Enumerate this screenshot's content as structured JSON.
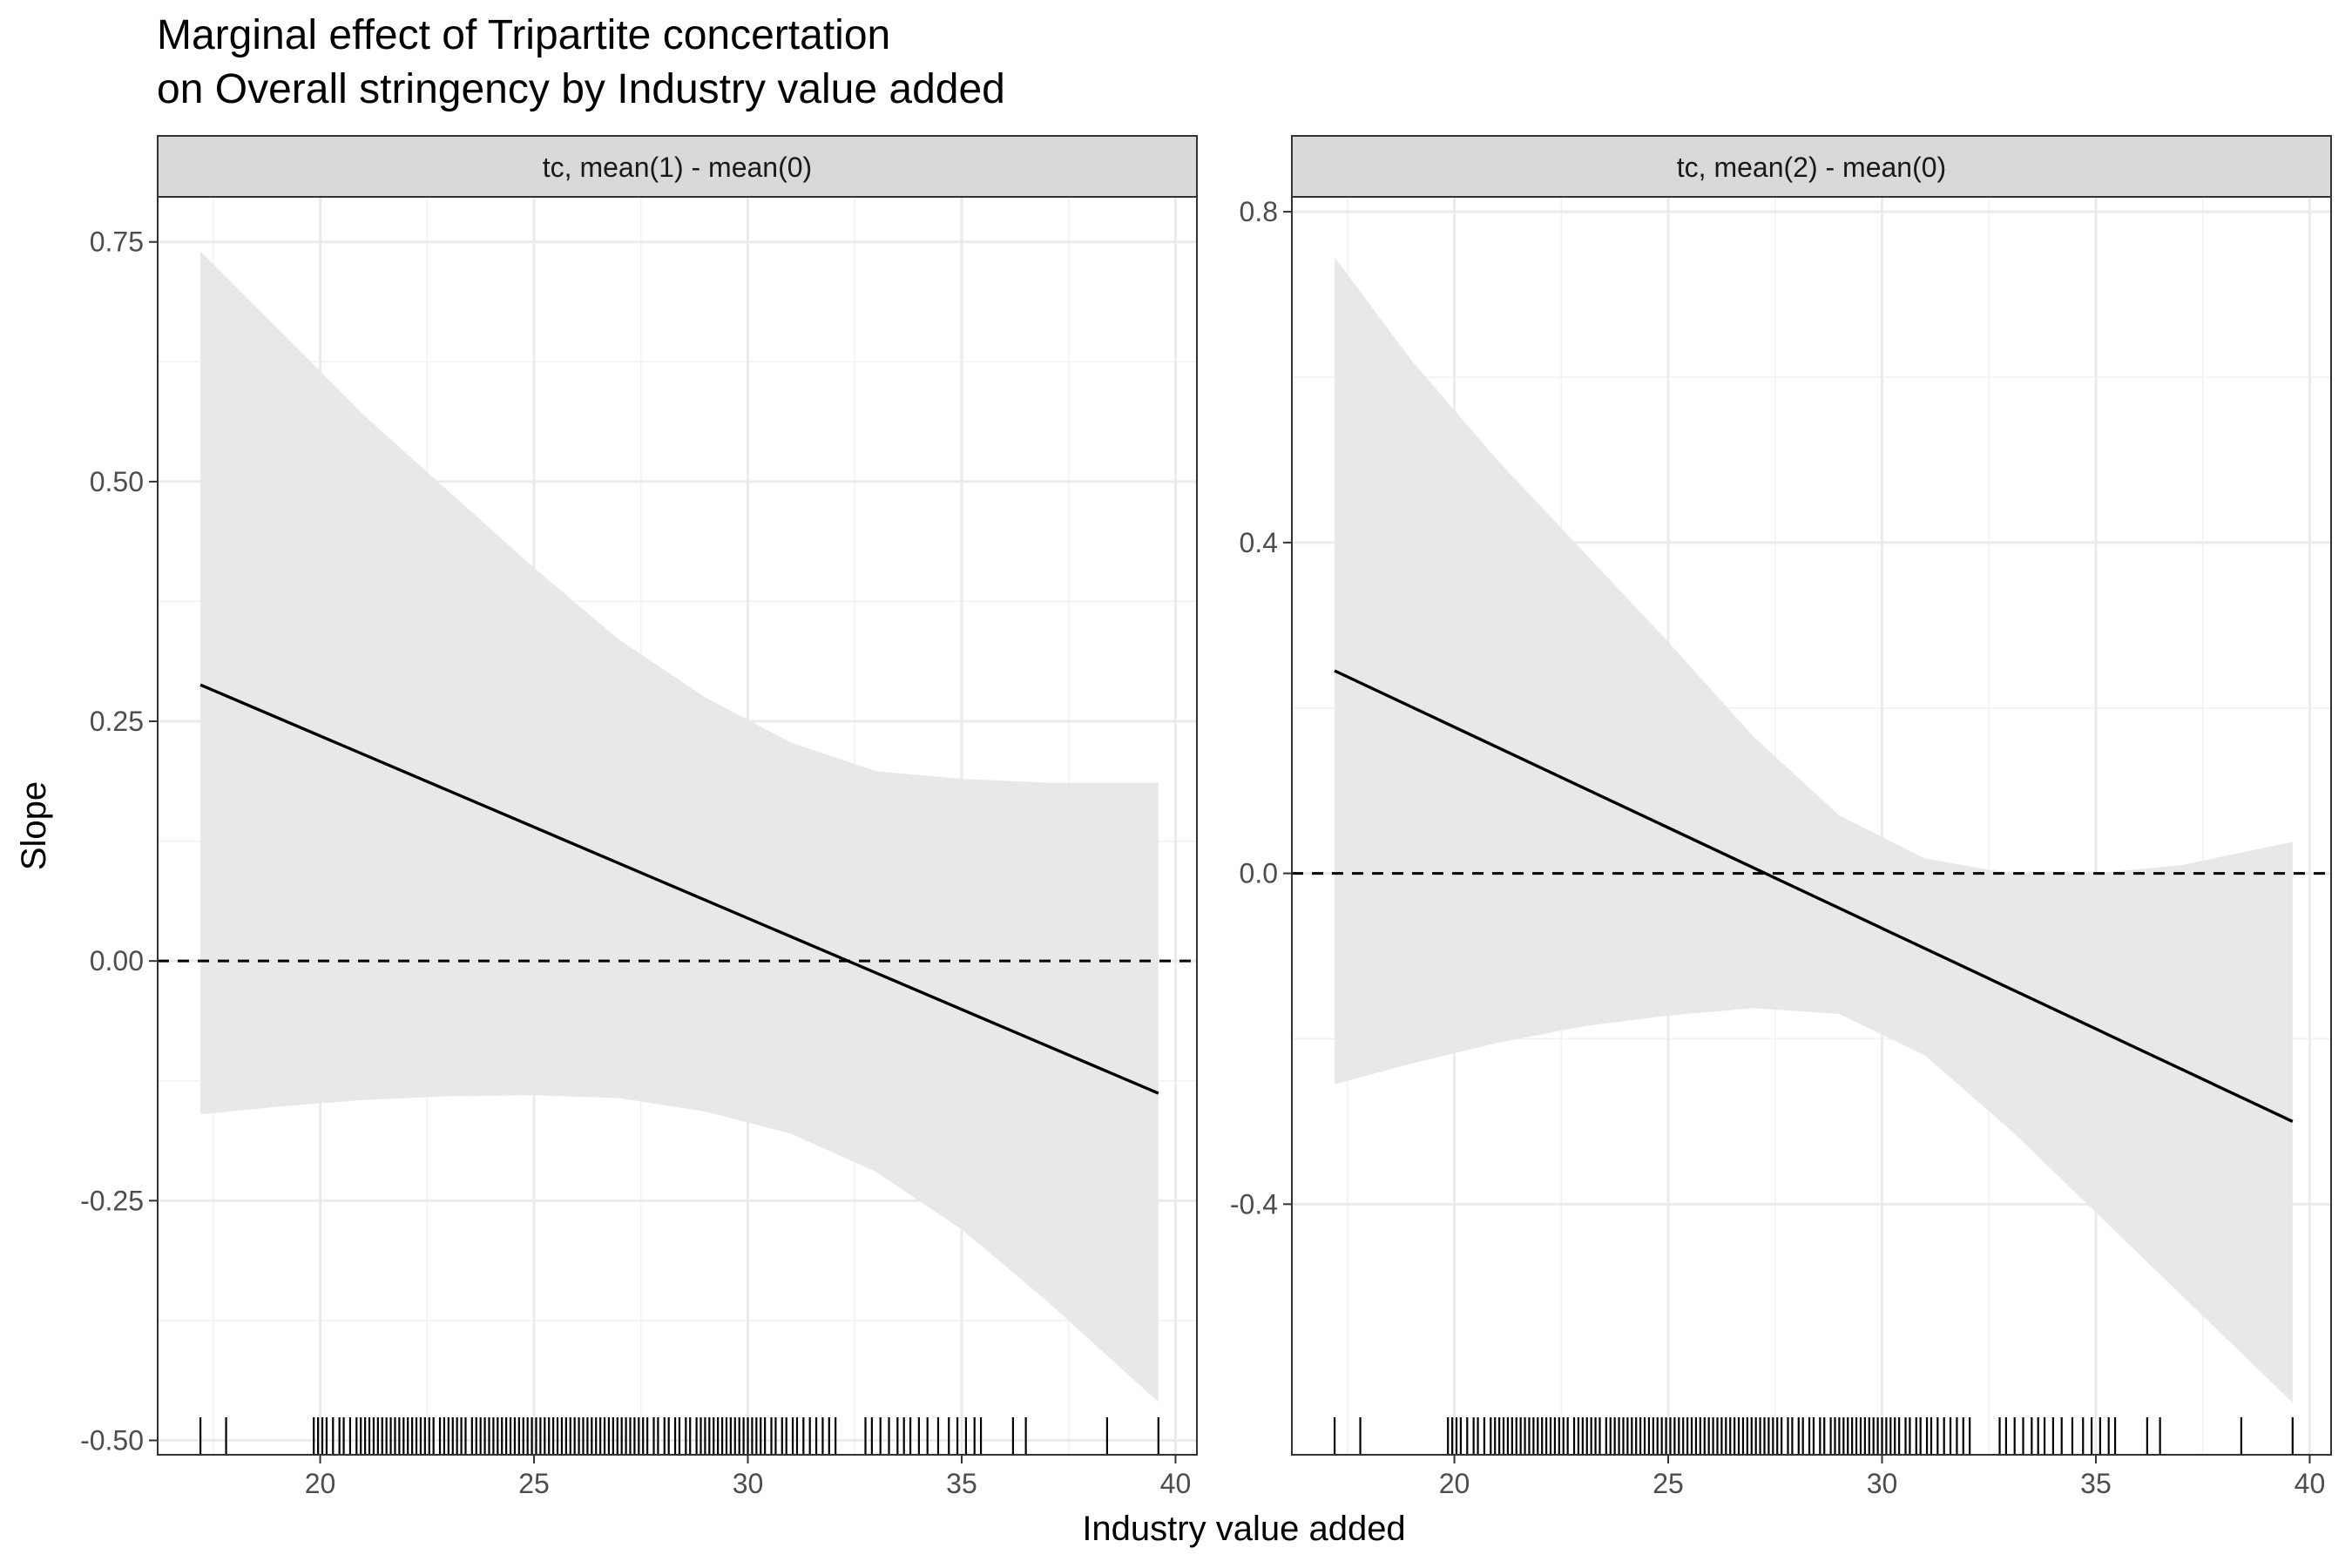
{
  "chart_data": {
    "type": "line",
    "title_lines": [
      "Marginal effect of Tripartite concertation",
      "on Overall stringency by Industry value added"
    ],
    "xlabel": "Industry value added",
    "ylabel": "Slope",
    "reference_line": {
      "y": 0,
      "style": "dashed"
    },
    "grid": true,
    "panels": [
      {
        "strip_label": "tc, mean(1) - mean(0)",
        "xlim": [
          16.2,
          40.5
        ],
        "ylim": [
          -0.515,
          0.797
        ],
        "x_ticks": [
          20,
          25,
          30,
          35,
          40
        ],
        "y_ticks": [
          0.75,
          0.5,
          0.25,
          0.0,
          -0.25,
          -0.5
        ],
        "y_tick_labels": [
          "0.75",
          "0.50",
          "0.25",
          "0.00",
          "-0.25",
          "-0.50"
        ],
        "line": {
          "x": [
            17.2,
            39.6
          ],
          "y": [
            0.288,
            -0.138
          ]
        },
        "ribbon": {
          "x": [
            17.2,
            19.0,
            21.0,
            23.0,
            25.0,
            27.0,
            29.0,
            31.0,
            33.0,
            35.0,
            37.0,
            39.6
          ],
          "upper": [
            0.74,
            0.66,
            0.57,
            0.49,
            0.41,
            0.335,
            0.275,
            0.228,
            0.198,
            0.19,
            0.186,
            0.186
          ],
          "lower": [
            -0.16,
            -0.152,
            -0.145,
            -0.141,
            -0.14,
            -0.143,
            -0.157,
            -0.18,
            -0.22,
            -0.28,
            -0.355,
            -0.46
          ]
        }
      },
      {
        "strip_label": "tc, mean(2) - mean(0)",
        "xlim": [
          16.2,
          40.5
        ],
        "ylim": [
          -0.703,
          0.818
        ],
        "x_ticks": [
          20,
          25,
          30,
          35,
          40
        ],
        "y_ticks": [
          0.8,
          0.4,
          0.0,
          -0.4
        ],
        "y_tick_labels": [
          "0.8",
          "0.4",
          "0.0",
          "-0.4"
        ],
        "line": {
          "x": [
            17.2,
            39.6
          ],
          "y": [
            0.245,
            -0.3
          ]
        },
        "ribbon": {
          "x": [
            17.2,
            19.0,
            21.0,
            23.0,
            25.0,
            27.0,
            29.0,
            31.0,
            33.0,
            35.0,
            37.0,
            39.6
          ],
          "upper": [
            0.745,
            0.62,
            0.5,
            0.39,
            0.28,
            0.165,
            0.07,
            0.018,
            0.0,
            0.0,
            0.01,
            0.038
          ],
          "lower": [
            -0.255,
            -0.23,
            -0.205,
            -0.185,
            -0.172,
            -0.163,
            -0.17,
            -0.22,
            -0.31,
            -0.41,
            -0.51,
            -0.64
          ]
        }
      }
    ],
    "rug_x": [
      17.2,
      17.8,
      19.85,
      19.95,
      20.05,
      20.15,
      20.3,
      20.45,
      20.55,
      20.7,
      20.85,
      20.95,
      21.05,
      21.15,
      21.25,
      21.35,
      21.45,
      21.55,
      21.65,
      21.75,
      21.85,
      21.95,
      22.05,
      22.15,
      22.25,
      22.35,
      22.45,
      22.55,
      22.65,
      22.8,
      22.9,
      23.0,
      23.1,
      23.2,
      23.3,
      23.4,
      23.55,
      23.65,
      23.75,
      23.85,
      23.95,
      24.05,
      24.15,
      24.25,
      24.35,
      24.45,
      24.55,
      24.65,
      24.75,
      24.85,
      24.95,
      25.05,
      25.15,
      25.25,
      25.35,
      25.45,
      25.55,
      25.65,
      25.75,
      25.85,
      25.95,
      26.05,
      26.15,
      26.25,
      26.35,
      26.45,
      26.55,
      26.65,
      26.75,
      26.85,
      26.95,
      27.05,
      27.15,
      27.25,
      27.35,
      27.45,
      27.55,
      27.65,
      27.8,
      27.9,
      28.05,
      28.15,
      28.3,
      28.4,
      28.55,
      28.65,
      28.8,
      28.9,
      29.0,
      29.1,
      29.2,
      29.3,
      29.4,
      29.5,
      29.6,
      29.7,
      29.8,
      29.9,
      30.0,
      30.1,
      30.2,
      30.3,
      30.4,
      30.55,
      30.65,
      30.8,
      30.9,
      31.05,
      31.15,
      31.3,
      31.45,
      31.6,
      31.75,
      31.9,
      32.05,
      32.75,
      32.9,
      33.1,
      33.3,
      33.5,
      33.65,
      33.8,
      34.0,
      34.2,
      34.45,
      34.7,
      34.9,
      35.1,
      35.3,
      35.45,
      36.2,
      36.5,
      38.4,
      39.6
    ]
  }
}
